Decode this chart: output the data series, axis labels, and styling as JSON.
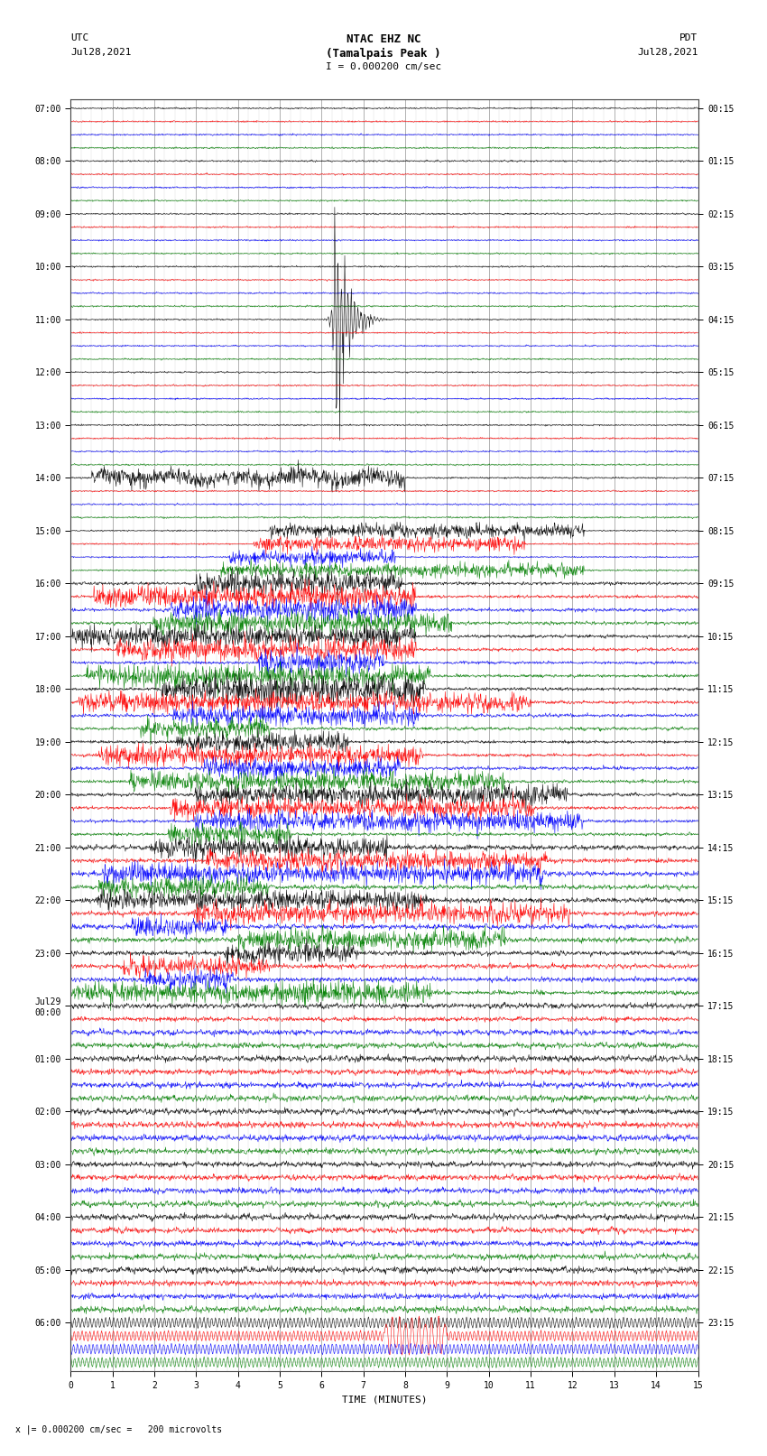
{
  "title_line1": "NTAC EHZ NC",
  "title_line2": "(Tamalpais Peak )",
  "title_line3": "I = 0.000200 cm/sec",
  "left_label_top": "UTC",
  "left_label_date": "Jul28,2021",
  "right_label_top": "PDT",
  "right_label_date": "Jul28,2021",
  "xlabel": "TIME (MINUTES)",
  "bottom_note": "x |= 0.000200 cm/sec =   200 microvolts",
  "utc_hour_labels": [
    "07:00",
    "08:00",
    "09:00",
    "10:00",
    "11:00",
    "12:00",
    "13:00",
    "14:00",
    "15:00",
    "16:00",
    "17:00",
    "18:00",
    "19:00",
    "20:00",
    "21:00",
    "22:00",
    "23:00",
    "Jul29\n00:00",
    "01:00",
    "02:00",
    "03:00",
    "04:00",
    "05:00",
    "06:00"
  ],
  "utc_hour_rows": [
    0,
    4,
    8,
    12,
    16,
    20,
    24,
    28,
    32,
    36,
    40,
    44,
    48,
    52,
    56,
    60,
    64,
    68,
    72,
    76,
    80,
    84,
    88,
    92
  ],
  "pdt_hour_labels": [
    "00:15",
    "01:15",
    "02:15",
    "03:15",
    "04:15",
    "05:15",
    "06:15",
    "07:15",
    "08:15",
    "09:15",
    "10:15",
    "11:15",
    "12:15",
    "13:15",
    "14:15",
    "15:15",
    "16:15",
    "17:15",
    "18:15",
    "19:15",
    "20:15",
    "21:15",
    "22:15",
    "23:15"
  ],
  "pdt_hour_rows": [
    0,
    4,
    8,
    12,
    16,
    20,
    24,
    28,
    32,
    36,
    40,
    44,
    48,
    52,
    56,
    60,
    64,
    68,
    72,
    76,
    80,
    84,
    88,
    92
  ],
  "n_rows": 96,
  "n_minutes": 15,
  "bg_color": "#ffffff",
  "grid_color": "#777777",
  "line_colors_cycle": [
    "#000000",
    "#ff0000",
    "#0000ff",
    "#008000"
  ],
  "earthquake_row": 16,
  "earthquake_minute": 6.3,
  "earthquake_amplitude": 10.0,
  "noise_amplitude_base": 0.06,
  "figsize": [
    8.5,
    16.13
  ],
  "dpi": 100,
  "tick_fontsize": 7,
  "label_fontsize": 8
}
